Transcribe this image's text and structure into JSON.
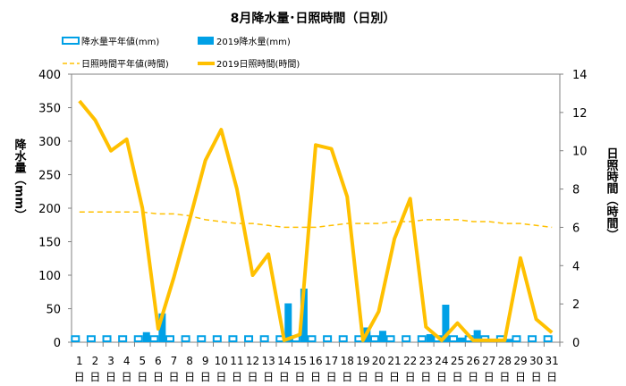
{
  "chart_data": {
    "type": "bar+line",
    "title": "8月降水量･日照時間（日別）",
    "y_left_label": "降水量（mm）",
    "y_right_label": "日照時間（時間）",
    "y_left_lim": [
      0,
      400
    ],
    "y_left_ticks": [
      "0",
      "50",
      "100",
      "150",
      "200",
      "250",
      "300",
      "350",
      "400"
    ],
    "y_right_lim": [
      0,
      14
    ],
    "y_right_ticks": [
      "0",
      "2",
      "4",
      "6",
      "8",
      "10",
      "12",
      "14"
    ],
    "categories": [
      "1",
      "2",
      "3",
      "4",
      "5",
      "6",
      "7",
      "8",
      "9",
      "10",
      "11",
      "12",
      "13",
      "14",
      "15",
      "16",
      "17",
      "18",
      "19",
      "20",
      "21",
      "22",
      "23",
      "24",
      "25",
      "26",
      "27",
      "28",
      "29",
      "30",
      "31"
    ],
    "day_suffix": "日",
    "legend": {
      "normal_rain": "降水量平年値(mm)",
      "rain_2019": "2019降水量(mm)",
      "normal_sun": "日照時間平年値(時間)",
      "sun_2019": "2019日照時間(時間)"
    },
    "series": [
      {
        "name": "降水量平年値(mm)",
        "axis": "left",
        "values": [
          9,
          9,
          9,
          9,
          9,
          9,
          9,
          9,
          9,
          9,
          9,
          9,
          9,
          9,
          9,
          9,
          9,
          9,
          9,
          9,
          9,
          9,
          9,
          9,
          9,
          9,
          9,
          9,
          9,
          9,
          9
        ],
        "color": "#00a0e6"
      },
      {
        "name": "2019降水量(mm)",
        "axis": "left",
        "values": [
          0,
          0,
          0,
          0,
          15,
          43,
          0,
          0,
          0,
          0,
          0,
          0,
          0,
          58,
          80,
          0,
          0,
          0,
          22,
          17,
          0,
          0,
          12,
          56,
          7,
          18,
          0,
          5,
          0,
          0,
          0
        ],
        "color": "#00a0e6"
      },
      {
        "name": "日照時間平年値(時間)",
        "axis": "right",
        "values": [
          6.8,
          6.8,
          6.8,
          6.8,
          6.8,
          6.7,
          6.7,
          6.6,
          6.4,
          6.3,
          6.2,
          6.2,
          6.1,
          6.0,
          6.0,
          6.0,
          6.1,
          6.2,
          6.2,
          6.2,
          6.3,
          6.3,
          6.4,
          6.4,
          6.4,
          6.3,
          6.3,
          6.2,
          6.2,
          6.1,
          6.0
        ],
        "color": "#ffc000"
      },
      {
        "name": "2019日照時間(時間)",
        "axis": "right",
        "values": [
          12.6,
          11.6,
          10.0,
          10.6,
          7.0,
          0.7,
          3.4,
          6.4,
          9.5,
          11.1,
          8.0,
          3.5,
          4.6,
          0.1,
          0.4,
          10.3,
          10.1,
          7.6,
          0.1,
          1.6,
          5.4,
          7.5,
          0.8,
          0.1,
          1.0,
          0.1,
          0.1,
          0.1,
          4.4,
          1.2,
          0.5
        ],
        "color": "#ffc000"
      }
    ]
  }
}
